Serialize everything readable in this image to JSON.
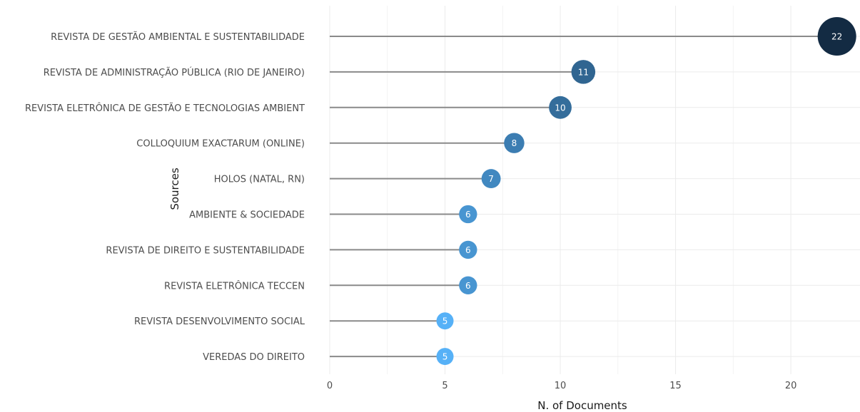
{
  "chart_data": {
    "type": "lollipop",
    "title": "",
    "xlabel": "N. of Documents",
    "ylabel": "Sources",
    "xlim": [
      0,
      23
    ],
    "xticks": [
      0,
      5,
      10,
      15,
      20
    ],
    "grid": true,
    "legend": "none",
    "categories": [
      "REVISTA DE GESTÃO AMBIENTAL E SUSTENTABILIDADE",
      "REVISTA DE ADMINISTRAÇÃO PÚBLICA (RIO DE JANEIRO)",
      "REVISTA ELETRÔNICA DE GESTÃO E TECNOLOGIAS AMBIENT",
      "COLLOQUIUM EXACTARUM (ONLINE)",
      "HOLOS (NATAL, RN)",
      "AMBIENTE & SOCIEDADE",
      "REVISTA DE DIREITO E SUSTENTABILIDADE",
      "REVISTA ELETRÔNICA TECCEN",
      "REVISTA DESENVOLVIMENTO SOCIAL",
      "VEREDAS DO DIREITO"
    ],
    "values": [
      22,
      11,
      10,
      8,
      7,
      6,
      6,
      6,
      5,
      5
    ],
    "color_scale": {
      "low": "#56b1f7",
      "high": "#132b43"
    },
    "segment_color": "#8a8a8a"
  }
}
